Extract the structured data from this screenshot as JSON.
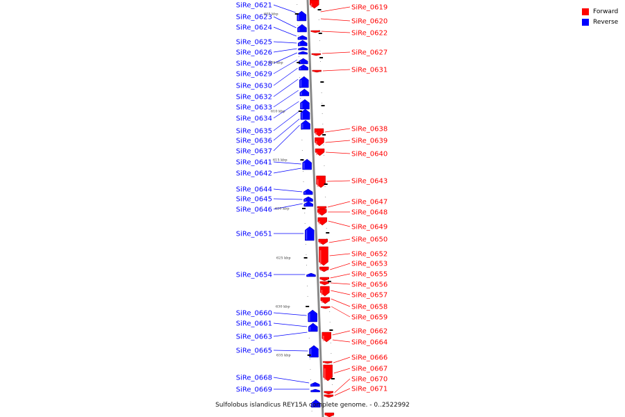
{
  "legend": {
    "forward_label": "Forward",
    "reverse_label": "Reverse",
    "forward_color": "#ff0000",
    "reverse_color": "#0000ff"
  },
  "caption": "Sulfolobus islandicus REY15A complete genome. - 0..2522992",
  "scale_labels": [
    "605 kbp",
    "605 kbp",
    "610 kbp",
    "615 kbp",
    "620 kbp",
    "625 kbp",
    "630 kbp",
    "635 kbp"
  ],
  "genes_reverse": [
    "SiRe_0621",
    "SiRe_0623",
    "SiRe_0624",
    "SiRe_0625",
    "SiRe_0626",
    "SiRe_0628",
    "SiRe_0629",
    "SiRe_0630",
    "SiRe_0632",
    "SiRe_0633",
    "SiRe_0634",
    "SiRe_0635",
    "SiRe_0636",
    "SiRe_0637",
    "SiRe_0641",
    "SiRe_0642",
    "SiRe_0644",
    "SiRe_0645",
    "SiRe_0646",
    "SiRe_0651",
    "SiRe_0654",
    "SiRe_0660",
    "SiRe_0661",
    "SiRe_0663",
    "SiRe_0665",
    "SiRe_0668",
    "SiRe_0669"
  ],
  "genes_forward": [
    "SiRe_0619",
    "SiRe_0620",
    "SiRe_0622",
    "SiRe_0627",
    "SiRe_0631",
    "SiRe_0638",
    "SiRe_0639",
    "SiRe_0640",
    "SiRe_0643",
    "SiRe_0647",
    "SiRe_0648",
    "SiRe_0649",
    "SiRe_0650",
    "SiRe_0652",
    "SiRe_0653",
    "SiRe_0655",
    "SiRe_0656",
    "SiRe_0657",
    "SiRe_0658",
    "SiRe_0659",
    "SiRe_0662",
    "SiRe_0664",
    "SiRe_0666",
    "SiRe_0667",
    "SiRe_0670",
    "SiRe_0671"
  ]
}
